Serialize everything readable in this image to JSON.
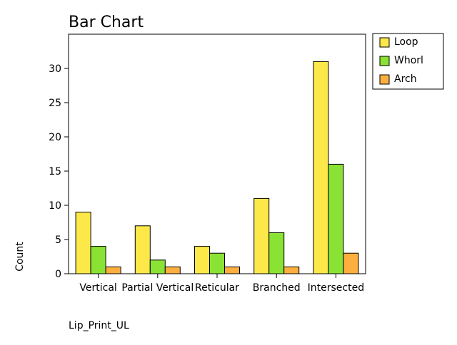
{
  "chart_data": {
    "type": "bar",
    "title": "Bar Chart",
    "xlabel": "Lip_Print_UL",
    "ylabel": "Count",
    "categories": [
      "Vertical",
      "Partial Vertical",
      "Reticular",
      "Branched",
      "Intersected"
    ],
    "series": [
      {
        "name": "Loop",
        "color": "#fde84a",
        "values": [
          9,
          7,
          4,
          11,
          31
        ]
      },
      {
        "name": "Whorl",
        "color": "#8ae234",
        "values": [
          4,
          2,
          3,
          6,
          16
        ]
      },
      {
        "name": "Arch",
        "color": "#fcaf3e",
        "values": [
          1,
          1,
          1,
          1,
          3
        ]
      }
    ],
    "ylim": [
      0,
      35
    ],
    "yticks": [
      0,
      5,
      10,
      15,
      20,
      25,
      30
    ],
    "grid": false,
    "legend_position": "right"
  }
}
